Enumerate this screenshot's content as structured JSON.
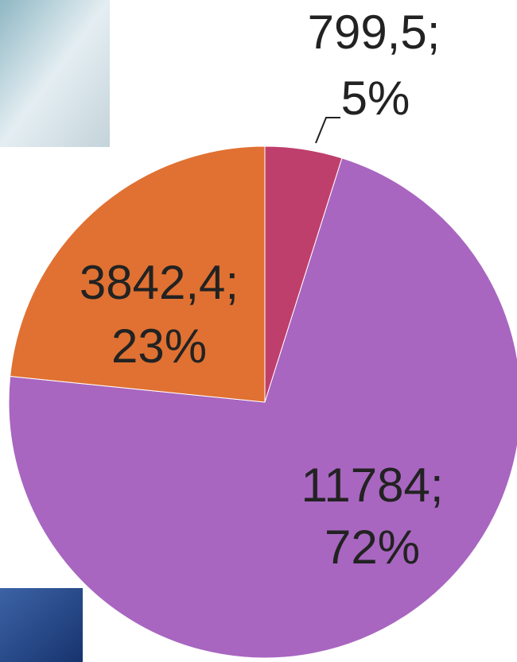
{
  "chart_data": {
    "type": "pie",
    "values": [
      799.5,
      11784,
      3842.4
    ],
    "value_labels": [
      "799,5;",
      "11784;",
      "3842,4;"
    ],
    "percent_labels": [
      "5%",
      "72%",
      "23%"
    ],
    "colors": [
      "#bf3f6c",
      "#a866c0",
      "#e07132"
    ]
  }
}
